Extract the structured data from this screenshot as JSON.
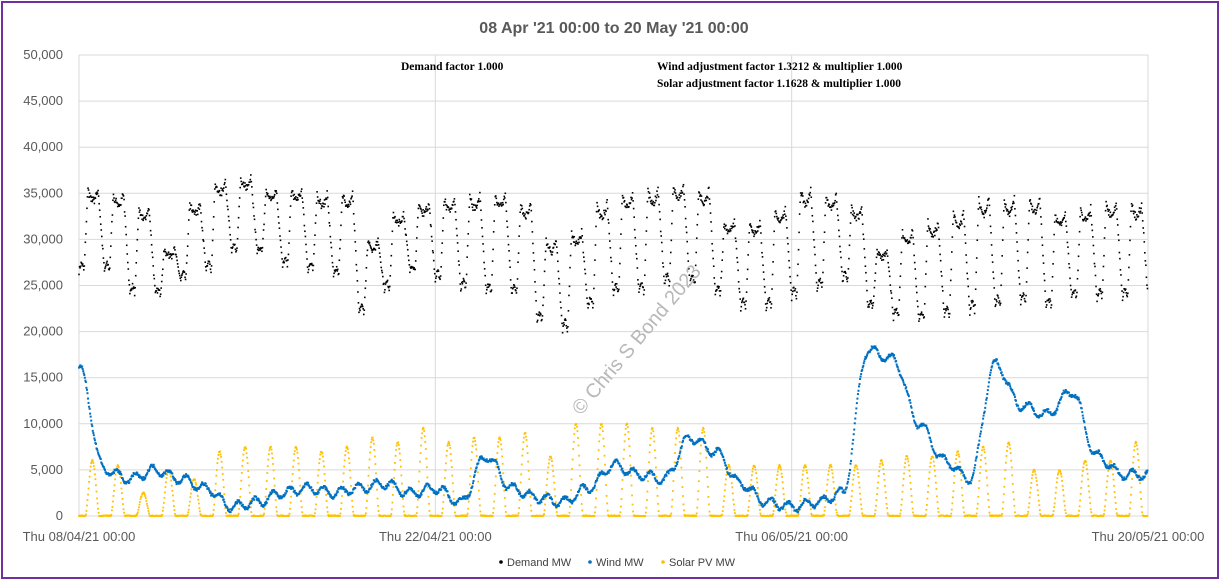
{
  "chart_data": {
    "type": "scatter",
    "title": "08 Apr '21 00:00 to 20 May '21 00:00",
    "xlabel": "",
    "ylabel": "",
    "x_range": [
      "Thu 08/04/21 00:00",
      "Thu 20/05/21 00:00"
    ],
    "x_tick_labels": [
      "Thu 08/04/21 00:00",
      "Thu 22/04/21 00:00",
      "Thu 06/05/21 00:00",
      "Thu 20/05/21 00:00"
    ],
    "ylim": [
      0,
      50000
    ],
    "y_tick_labels": [
      "0",
      "5,000",
      "10,000",
      "15,000",
      "20,000",
      "25,000",
      "30,000",
      "35,000",
      "40,000",
      "45,000",
      "50,000"
    ],
    "grid": true,
    "legend_position": "bottom",
    "annotations": [
      "Demand factor 1.000",
      "Wind adjustment factor 1.3212 & multiplier 1.000",
      "Solar adjustment factor 1.1628 & multiplier 1.000"
    ],
    "watermark": "© Chris S Bond  2023",
    "series": [
      {
        "name": "Demand MW",
        "color": "#000000",
        "daily_peak_MW": [
          35500,
          35000,
          33500,
          29000,
          34000,
          36500,
          36800,
          35500,
          35500,
          35000,
          35000,
          30000,
          33000,
          34000,
          34500,
          34800,
          35000,
          34000,
          30000,
          31000,
          34000,
          35000,
          35500,
          36000,
          35500,
          32000,
          32000,
          33500,
          35500,
          35000,
          33500,
          29000,
          31000,
          32000,
          33000,
          34500,
          34500,
          34500,
          33000,
          33500,
          34000,
          34000
        ],
        "daily_min_MW": [
          26500,
          26500,
          24000,
          24000,
          25500,
          26500,
          28500,
          28500,
          27000,
          26500,
          26000,
          22000,
          24500,
          26500,
          25500,
          24500,
          24000,
          24000,
          21000,
          20000,
          22500,
          24000,
          24000,
          25000,
          25000,
          24000,
          22500,
          22500,
          23500,
          24500,
          25500,
          22500,
          21500,
          21000,
          21500,
          22000,
          22500,
          23000,
          22500,
          23500,
          23500,
          23500
        ]
      },
      {
        "name": "Wind MW",
        "color": "#0070c0",
        "daily_level_MW": [
          16000,
          5000,
          4000,
          5000,
          4000,
          3000,
          1000,
          1500,
          2500,
          3000,
          2500,
          3000,
          3500,
          2500,
          3000,
          1500,
          6500,
          3000,
          2000,
          1500,
          3000,
          5500,
          4500,
          4000,
          8500,
          7000,
          3500,
          1500,
          1000,
          1500,
          2500,
          18000,
          17000,
          10000,
          6000,
          4000,
          16500,
          12000,
          11000,
          13500,
          6500,
          4500
        ]
      },
      {
        "name": "Solar PV MW",
        "color": "#ffc000",
        "daily_peak_MW": [
          6000,
          5500,
          2500,
          5000,
          4000,
          7000,
          7500,
          7500,
          7500,
          7000,
          7500,
          8500,
          8000,
          9500,
          8000,
          8500,
          8500,
          9000,
          6500,
          10000,
          10000,
          10000,
          9500,
          9500,
          9500,
          5500,
          5500,
          5500,
          5500,
          5500,
          5500,
          6000,
          6500,
          6500,
          7000,
          7500,
          8000,
          5000,
          5000,
          6000,
          6000,
          8000
        ]
      }
    ]
  }
}
